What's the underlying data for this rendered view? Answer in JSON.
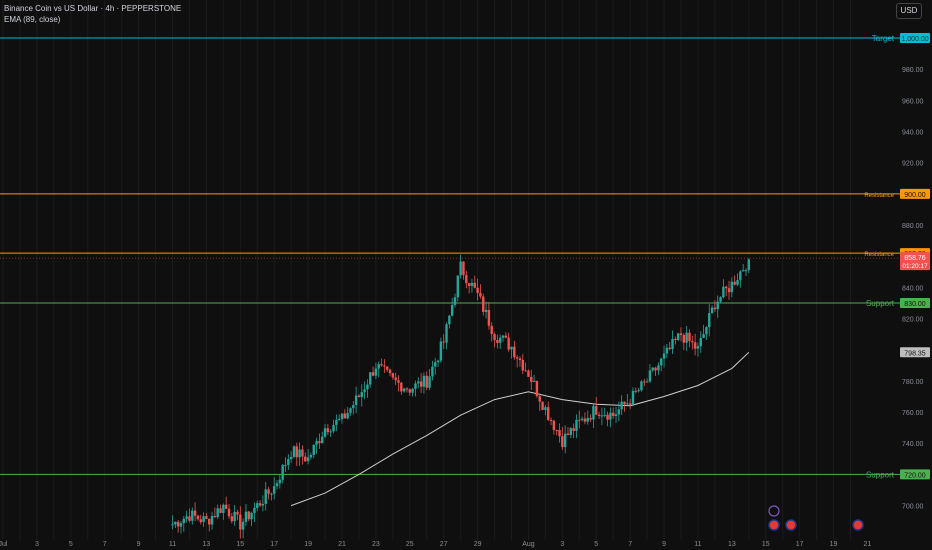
{
  "header": {
    "title": "Binance Coin vs US Dollar · 4h · PEPPERSTONE",
    "indicator": "EMA (89, close)",
    "currency": "USD"
  },
  "colors": {
    "background": "#0f0f0f",
    "up": "#26a69a",
    "down": "#ef5350",
    "ema": "#cfcfcf",
    "target": "#00bcd4",
    "resistance": "#ff9800",
    "support": "#4caf50"
  },
  "chart_data": {
    "type": "candlestick",
    "symbol": "BNBUSD",
    "timeframe": "4h",
    "ylim": [
      690,
      1010
    ],
    "y_ticks": [
      700,
      720,
      740,
      760,
      780,
      800,
      820,
      840,
      860,
      880,
      900,
      920,
      940,
      960,
      980
    ],
    "x_ticks": [
      "Jul",
      "3",
      "5",
      "7",
      "9",
      "11",
      "13",
      "15",
      "17",
      "19",
      "21",
      "23",
      "25",
      "27",
      "29",
      "Aug",
      "3",
      "5",
      "7",
      "9",
      "11",
      "13",
      "15",
      "17",
      "19",
      "21"
    ],
    "levels": [
      {
        "label": "Target",
        "value": 1000.0,
        "value_label": "1,000.00",
        "kind": "target"
      },
      {
        "label": "Resistance",
        "value": 900.0,
        "value_label": "900.00",
        "kind": "resistance"
      },
      {
        "label": "Resistance",
        "value": 862.0,
        "value_label": "862.00",
        "kind": "resistance"
      },
      {
        "label": "Support",
        "value": 830.0,
        "value_label": "830.00",
        "kind": "support"
      },
      {
        "label": "Support",
        "value": 720.0,
        "value_label": "720.00",
        "kind": "support"
      }
    ],
    "last_price": {
      "value": 858.76,
      "label": "858.76",
      "countdown": "01:20:17"
    },
    "ema": {
      "name": "EMA (89, close)",
      "value": 798.35,
      "label": "798.35"
    },
    "close_path": [
      [
        "Jul 11",
        688
      ],
      [
        "Jul 12",
        694
      ],
      [
        "Jul 13",
        690
      ],
      [
        "Jul 14",
        700
      ],
      [
        "Jul 15",
        688
      ],
      [
        "Jul 16",
        700
      ],
      [
        "Jul 17",
        712
      ],
      [
        "Jul 18",
        735
      ],
      [
        "Jul 19",
        730
      ],
      [
        "Jul 20",
        750
      ],
      [
        "Jul 21",
        755
      ],
      [
        "Jul 22",
        770
      ],
      [
        "Jul 23",
        790
      ],
      [
        "Jul 24",
        780
      ],
      [
        "Jul 25",
        775
      ],
      [
        "Jul 26",
        780
      ],
      [
        "Jul 27",
        805
      ],
      [
        "Jul 28",
        853
      ],
      [
        "Jul 29",
        835
      ],
      [
        "Jul 30",
        810
      ],
      [
        "Jul 31",
        802
      ],
      [
        "Aug 1",
        785
      ],
      [
        "Aug 2",
        762
      ],
      [
        "Aug 3",
        742
      ],
      [
        "Aug 4",
        753
      ],
      [
        "Aug 5",
        762
      ],
      [
        "Aug 6",
        758
      ],
      [
        "Aug 7",
        768
      ],
      [
        "Aug 8",
        780
      ],
      [
        "Aug 9",
        795
      ],
      [
        "Aug 10",
        810
      ],
      [
        "Aug 11",
        800
      ],
      [
        "Aug 12",
        830
      ],
      [
        "Aug 13",
        842
      ],
      [
        "Aug 14",
        858
      ]
    ],
    "ema_path": [
      [
        "Jul 18",
        700
      ],
      [
        "Jul 20",
        708
      ],
      [
        "Jul 22",
        720
      ],
      [
        "Jul 24",
        733
      ],
      [
        "Jul 26",
        745
      ],
      [
        "Jul 28",
        758
      ],
      [
        "Jul 30",
        768
      ],
      [
        "Aug 1",
        773
      ],
      [
        "Aug 3",
        768
      ],
      [
        "Aug 5",
        765
      ],
      [
        "Aug 7",
        764
      ],
      [
        "Aug 9",
        770
      ],
      [
        "Aug 11",
        777
      ],
      [
        "Aug 13",
        788
      ],
      [
        "Aug 14",
        798.35
      ]
    ]
  }
}
